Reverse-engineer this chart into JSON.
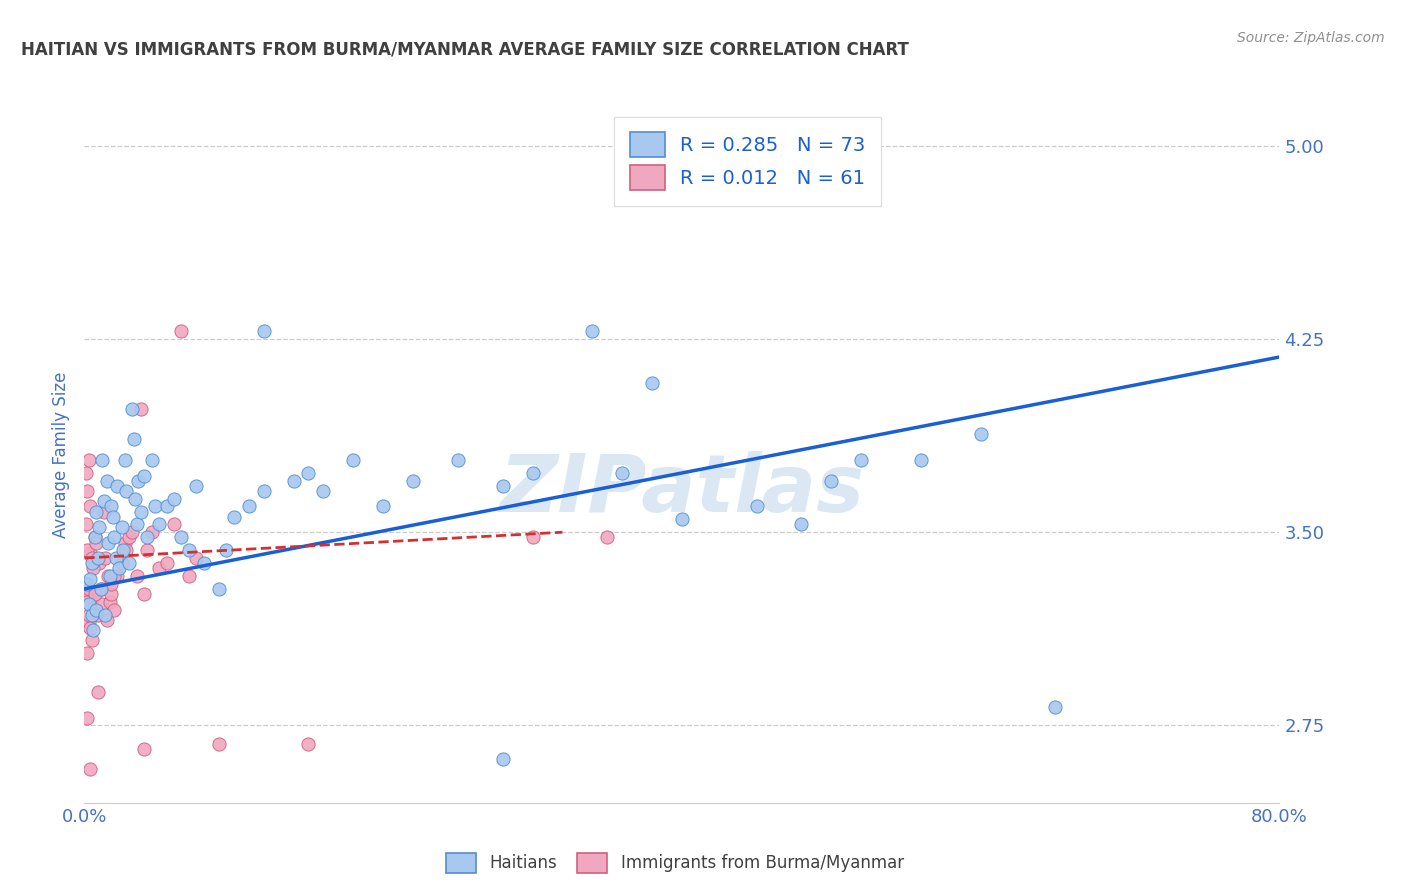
{
  "title": "HAITIAN VS IMMIGRANTS FROM BURMA/MYANMAR AVERAGE FAMILY SIZE CORRELATION CHART",
  "source": "Source: ZipAtlas.com",
  "ylabel": "Average Family Size",
  "xlabel": "",
  "xlim": [
    0.0,
    0.8
  ],
  "ylim": [
    2.45,
    5.15
  ],
  "yticks": [
    2.75,
    3.5,
    4.25,
    5.0
  ],
  "xticks": [
    0.0,
    0.2,
    0.4,
    0.6,
    0.8
  ],
  "xtick_labels": [
    "0.0%",
    "",
    "",
    "",
    "80.0%"
  ],
  "blue_color": "#a8c8f0",
  "pink_color": "#f0a8c0",
  "blue_edge_color": "#5090d0",
  "pink_edge_color": "#d06080",
  "blue_line_color": "#1a5fd4",
  "pink_line_color": "#d43030",
  "background_color": "#ffffff",
  "grid_color": "#cccccc",
  "axis_label_color": "#4472c4",
  "tick_color": "#4472c4",
  "title_color": "#404040",
  "source_color": "#909090",
  "watermark": "ZIPatlas",
  "blue_trend_x": [
    0.0,
    0.8
  ],
  "blue_trend_y": [
    3.28,
    4.18
  ],
  "pink_trend_x": [
    0.0,
    0.32
  ],
  "pink_trend_y": [
    3.4,
    3.5
  ],
  "blue_scatter": [
    [
      0.002,
      3.3
    ],
    [
      0.003,
      3.22
    ],
    [
      0.004,
      3.32
    ],
    [
      0.005,
      3.18
    ],
    [
      0.005,
      3.38
    ],
    [
      0.006,
      3.12
    ],
    [
      0.007,
      3.48
    ],
    [
      0.008,
      3.58
    ],
    [
      0.008,
      3.2
    ],
    [
      0.009,
      3.4
    ],
    [
      0.01,
      3.52
    ],
    [
      0.011,
      3.28
    ],
    [
      0.012,
      3.78
    ],
    [
      0.013,
      3.62
    ],
    [
      0.014,
      3.18
    ],
    [
      0.015,
      3.7
    ],
    [
      0.016,
      3.46
    ],
    [
      0.017,
      3.33
    ],
    [
      0.018,
      3.6
    ],
    [
      0.019,
      3.56
    ],
    [
      0.02,
      3.48
    ],
    [
      0.021,
      3.4
    ],
    [
      0.022,
      3.68
    ],
    [
      0.023,
      3.36
    ],
    [
      0.025,
      3.52
    ],
    [
      0.026,
      3.43
    ],
    [
      0.027,
      3.78
    ],
    [
      0.028,
      3.66
    ],
    [
      0.03,
      3.38
    ],
    [
      0.032,
      3.98
    ],
    [
      0.033,
      3.86
    ],
    [
      0.034,
      3.63
    ],
    [
      0.035,
      3.53
    ],
    [
      0.036,
      3.7
    ],
    [
      0.038,
      3.58
    ],
    [
      0.04,
      3.72
    ],
    [
      0.042,
      3.48
    ],
    [
      0.045,
      3.78
    ],
    [
      0.047,
      3.6
    ],
    [
      0.05,
      3.53
    ],
    [
      0.055,
      3.6
    ],
    [
      0.06,
      3.63
    ],
    [
      0.065,
      3.48
    ],
    [
      0.07,
      3.43
    ],
    [
      0.075,
      3.68
    ],
    [
      0.08,
      3.38
    ],
    [
      0.09,
      3.28
    ],
    [
      0.095,
      3.43
    ],
    [
      0.1,
      3.56
    ],
    [
      0.11,
      3.6
    ],
    [
      0.12,
      3.66
    ],
    [
      0.14,
      3.7
    ],
    [
      0.15,
      3.73
    ],
    [
      0.16,
      3.66
    ],
    [
      0.18,
      3.78
    ],
    [
      0.2,
      3.6
    ],
    [
      0.22,
      3.7
    ],
    [
      0.25,
      3.78
    ],
    [
      0.28,
      3.68
    ],
    [
      0.3,
      3.73
    ],
    [
      0.34,
      4.28
    ],
    [
      0.36,
      3.73
    ],
    [
      0.38,
      4.08
    ],
    [
      0.4,
      3.55
    ],
    [
      0.45,
      3.6
    ],
    [
      0.48,
      3.53
    ],
    [
      0.5,
      3.7
    ],
    [
      0.52,
      3.78
    ],
    [
      0.56,
      3.78
    ],
    [
      0.6,
      3.88
    ],
    [
      0.65,
      2.82
    ],
    [
      0.28,
      2.62
    ],
    [
      0.12,
      4.28
    ]
  ],
  "pink_scatter": [
    [
      0.001,
      3.3
    ],
    [
      0.002,
      3.25
    ],
    [
      0.003,
      3.15
    ],
    [
      0.004,
      3.42
    ],
    [
      0.005,
      3.08
    ],
    [
      0.006,
      3.25
    ],
    [
      0.007,
      3.48
    ],
    [
      0.008,
      3.2
    ],
    [
      0.009,
      3.18
    ],
    [
      0.01,
      3.38
    ],
    [
      0.011,
      3.28
    ],
    [
      0.012,
      3.22
    ],
    [
      0.013,
      3.58
    ],
    [
      0.014,
      3.4
    ],
    [
      0.015,
      3.16
    ],
    [
      0.016,
      3.33
    ],
    [
      0.017,
      3.23
    ],
    [
      0.018,
      3.26
    ],
    [
      0.02,
      3.2
    ],
    [
      0.022,
      3.33
    ],
    [
      0.025,
      3.38
    ],
    [
      0.027,
      3.46
    ],
    [
      0.028,
      3.43
    ],
    [
      0.03,
      3.48
    ],
    [
      0.032,
      3.5
    ],
    [
      0.035,
      3.33
    ],
    [
      0.038,
      3.98
    ],
    [
      0.04,
      3.26
    ],
    [
      0.042,
      3.43
    ],
    [
      0.045,
      3.5
    ],
    [
      0.05,
      3.36
    ],
    [
      0.055,
      3.38
    ],
    [
      0.06,
      3.53
    ],
    [
      0.065,
      4.28
    ],
    [
      0.07,
      3.33
    ],
    [
      0.075,
      3.4
    ],
    [
      0.001,
      3.73
    ],
    [
      0.002,
      3.66
    ],
    [
      0.003,
      3.78
    ],
    [
      0.004,
      3.6
    ],
    [
      0.001,
      3.53
    ],
    [
      0.002,
      3.43
    ],
    [
      0.003,
      3.28
    ],
    [
      0.002,
      3.23
    ],
    [
      0.003,
      3.18
    ],
    [
      0.004,
      3.13
    ],
    [
      0.005,
      3.4
    ],
    [
      0.006,
      3.36
    ],
    [
      0.007,
      3.26
    ],
    [
      0.008,
      3.46
    ],
    [
      0.02,
      3.33
    ],
    [
      0.018,
      3.3
    ],
    [
      0.09,
      2.68
    ],
    [
      0.15,
      2.68
    ],
    [
      0.3,
      3.48
    ],
    [
      0.35,
      3.48
    ],
    [
      0.002,
      2.78
    ],
    [
      0.004,
      2.58
    ],
    [
      0.04,
      2.66
    ],
    [
      0.009,
      2.88
    ],
    [
      0.002,
      3.03
    ]
  ]
}
